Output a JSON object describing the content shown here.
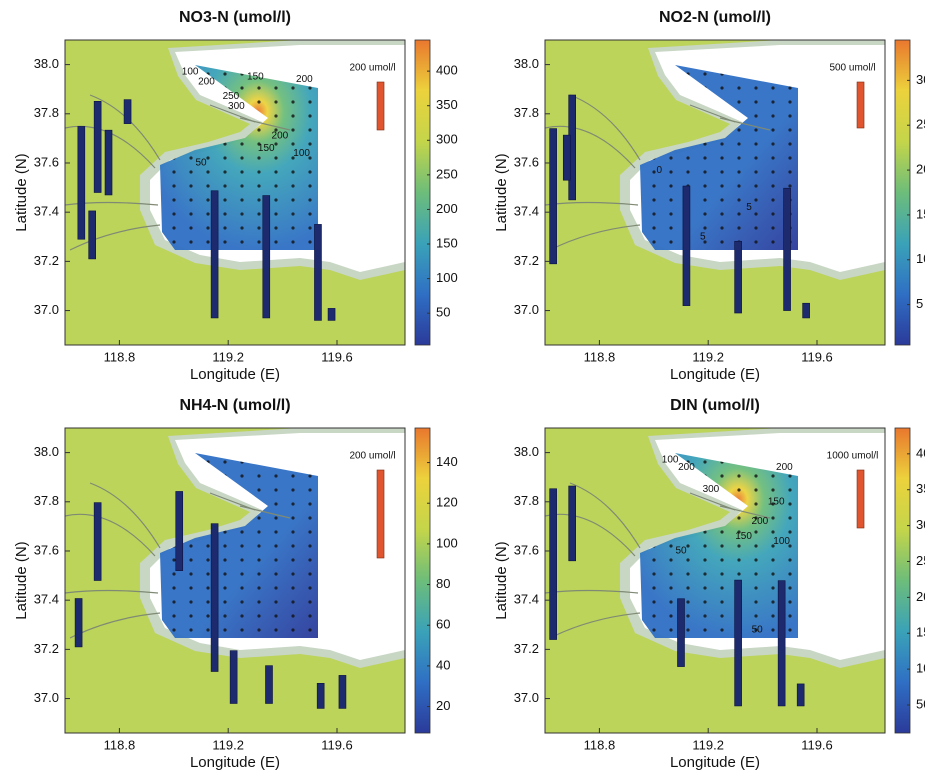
{
  "chart_data": [
    {
      "type": "map",
      "title": "NO3-N (umol/l)",
      "xlabel": "Longitude (E)",
      "ylabel": "Latitude (N)",
      "xlim": [
        118.6,
        119.85
      ],
      "ylim": [
        36.86,
        38.1
      ],
      "xticks": [
        118.8,
        119.2,
        119.6
      ],
      "yticks": [
        {
          "value": 37,
          "label": "37.0"
        },
        37.2,
        37.4,
        37.6,
        37.8,
        {
          "value": 38,
          "label": "38.0"
        }
      ],
      "colorbar_lim": [
        4,
        445
      ],
      "colorbar_ticks": [
        50,
        100,
        150,
        200,
        250,
        300,
        350,
        400
      ],
      "scale": {
        "value": 200,
        "label": "200 umol/l"
      },
      "bars": [
        {
          "lon": 118.66,
          "lat": 37.29,
          "value": 470
        },
        {
          "lon": 118.7,
          "lat": 37.21,
          "value": 200
        },
        {
          "lon": 118.72,
          "lat": 37.48,
          "value": 380
        },
        {
          "lon": 118.76,
          "lat": 37.47,
          "value": 270
        },
        {
          "lon": 118.83,
          "lat": 37.76,
          "value": 100
        },
        {
          "lon": 119.15,
          "lat": 36.97,
          "value": 530
        },
        {
          "lon": 119.34,
          "lat": 36.97,
          "value": 510
        },
        {
          "lon": 119.53,
          "lat": 36.96,
          "value": 400
        },
        {
          "lon": 119.58,
          "lat": 36.96,
          "value": 50
        }
      ],
      "contour_labels": [
        {
          "value": 100,
          "lon": 119.06,
          "lat": 37.97
        },
        {
          "value": 200,
          "lon": 119.12,
          "lat": 37.93
        },
        {
          "value": 150,
          "lon": 119.3,
          "lat": 37.95
        },
        {
          "value": 200,
          "lon": 119.48,
          "lat": 37.94
        },
        {
          "value": 250,
          "lon": 119.21,
          "lat": 37.87
        },
        {
          "value": 300,
          "lon": 119.23,
          "lat": 37.83
        },
        {
          "value": 200,
          "lon": 119.39,
          "lat": 37.71
        },
        {
          "value": 150,
          "lon": 119.34,
          "lat": 37.66
        },
        {
          "value": 100,
          "lon": 119.47,
          "lat": 37.64
        },
        {
          "value": 50,
          "lon": 119.1,
          "lat": 37.6
        }
      ]
    },
    {
      "type": "map",
      "title": "NO2-N (umol/l)",
      "xlabel": "Longitude (E)",
      "ylabel": "Latitude (N)",
      "xlim": [
        118.6,
        119.85
      ],
      "ylim": [
        36.86,
        38.1
      ],
      "xticks": [
        118.8,
        119.2,
        119.6
      ],
      "yticks": [
        {
          "value": 37,
          "label": "37.0"
        },
        37.2,
        37.4,
        37.6,
        37.8,
        {
          "value": 38,
          "label": "38.0"
        }
      ],
      "colorbar_lim": [
        0.5,
        34.5
      ],
      "colorbar_ticks": [
        5,
        10,
        15,
        20,
        25,
        30
      ],
      "scale": {
        "value": 500,
        "label": "500 umol/l"
      },
      "bars": [
        {
          "lon": 118.63,
          "lat": 37.19,
          "value": 1470
        },
        {
          "lon": 118.7,
          "lat": 37.45,
          "value": 1140
        },
        {
          "lon": 118.68,
          "lat": 37.53,
          "value": 490
        },
        {
          "lon": 119.12,
          "lat": 37.02,
          "value": 1300
        },
        {
          "lon": 119.31,
          "lat": 36.99,
          "value": 780
        },
        {
          "lon": 119.49,
          "lat": 37.0,
          "value": 1330
        },
        {
          "lon": 119.56,
          "lat": 36.97,
          "value": 160
        }
      ],
      "contour_labels": [
        {
          "value": 5,
          "lon": 119.35,
          "lat": 37.42
        },
        {
          "value": 5,
          "lon": 119.18,
          "lat": 37.3
        },
        {
          "value": 0,
          "lon": 119.02,
          "lat": 37.57
        }
      ]
    },
    {
      "type": "map",
      "title": "NH4-N (umol/l)",
      "xlabel": "Longitude (E)",
      "ylabel": "Latitude (N)",
      "xlim": [
        118.6,
        119.85
      ],
      "ylim": [
        36.86,
        38.1
      ],
      "xticks": [
        118.8,
        119.2,
        119.6
      ],
      "yticks": [
        {
          "value": 37,
          "label": "37.0"
        },
        37.2,
        37.4,
        37.6,
        37.8,
        {
          "value": 38,
          "label": "38.0"
        }
      ],
      "colorbar_lim": [
        7,
        157
      ],
      "colorbar_ticks": [
        20,
        40,
        60,
        80,
        100,
        120,
        140
      ],
      "scale": {
        "value": 200,
        "label": "200 umol/l"
      },
      "bars": [
        {
          "lon": 118.65,
          "lat": 37.21,
          "value": 110
        },
        {
          "lon": 118.72,
          "lat": 37.48,
          "value": 177
        },
        {
          "lon": 119.02,
          "lat": 37.52,
          "value": 180
        },
        {
          "lon": 119.15,
          "lat": 37.11,
          "value": 336
        },
        {
          "lon": 119.22,
          "lat": 36.98,
          "value": 120
        },
        {
          "lon": 119.35,
          "lat": 36.98,
          "value": 86
        },
        {
          "lon": 119.54,
          "lat": 36.96,
          "value": 57
        },
        {
          "lon": 119.62,
          "lat": 36.96,
          "value": 75
        }
      ],
      "contour_labels": []
    },
    {
      "type": "map",
      "title": "DIN (umol/l)",
      "xlabel": "Longitude (E)",
      "ylabel": "Latitude (N)",
      "xlim": [
        118.6,
        119.85
      ],
      "ylim": [
        36.86,
        38.1
      ],
      "xticks": [
        118.8,
        119.2,
        119.6
      ],
      "yticks": [
        {
          "value": 37,
          "label": "37.0"
        },
        37.2,
        37.4,
        37.6,
        37.8,
        {
          "value": 38,
          "label": "38.0"
        }
      ],
      "colorbar_lim": [
        11,
        436
      ],
      "colorbar_ticks": [
        50,
        100,
        150,
        200,
        250,
        300,
        350,
        400
      ],
      "scale": {
        "value": 1000,
        "label": "1000 umol/l"
      },
      "bars": [
        {
          "lon": 118.63,
          "lat": 37.24,
          "value": 2600
        },
        {
          "lon": 118.7,
          "lat": 37.56,
          "value": 1290
        },
        {
          "lon": 119.1,
          "lat": 37.13,
          "value": 1170
        },
        {
          "lon": 119.31,
          "lat": 36.97,
          "value": 2170
        },
        {
          "lon": 119.47,
          "lat": 36.97,
          "value": 2160
        },
        {
          "lon": 119.54,
          "lat": 36.97,
          "value": 380
        }
      ],
      "contour_labels": [
        {
          "value": 100,
          "lon": 119.06,
          "lat": 37.97
        },
        {
          "value": 200,
          "lon": 119.12,
          "lat": 37.94
        },
        {
          "value": 200,
          "lon": 119.48,
          "lat": 37.94
        },
        {
          "value": 300,
          "lon": 119.21,
          "lat": 37.85
        },
        {
          "value": 150,
          "lon": 119.45,
          "lat": 37.8
        },
        {
          "value": 200,
          "lon": 119.39,
          "lat": 37.72
        },
        {
          "value": 150,
          "lon": 119.33,
          "lat": 37.66
        },
        {
          "value": 100,
          "lon": 119.47,
          "lat": 37.64
        },
        {
          "value": 50,
          "lon": 119.1,
          "lat": 37.6
        },
        {
          "value": 50,
          "lon": 119.38,
          "lat": 37.28
        }
      ]
    }
  ],
  "colormap": [
    "#2b3a9a",
    "#2f6fc4",
    "#3aa2b8",
    "#6dbd7a",
    "#c4d54a",
    "#ecd23c",
    "#e9772e"
  ]
}
